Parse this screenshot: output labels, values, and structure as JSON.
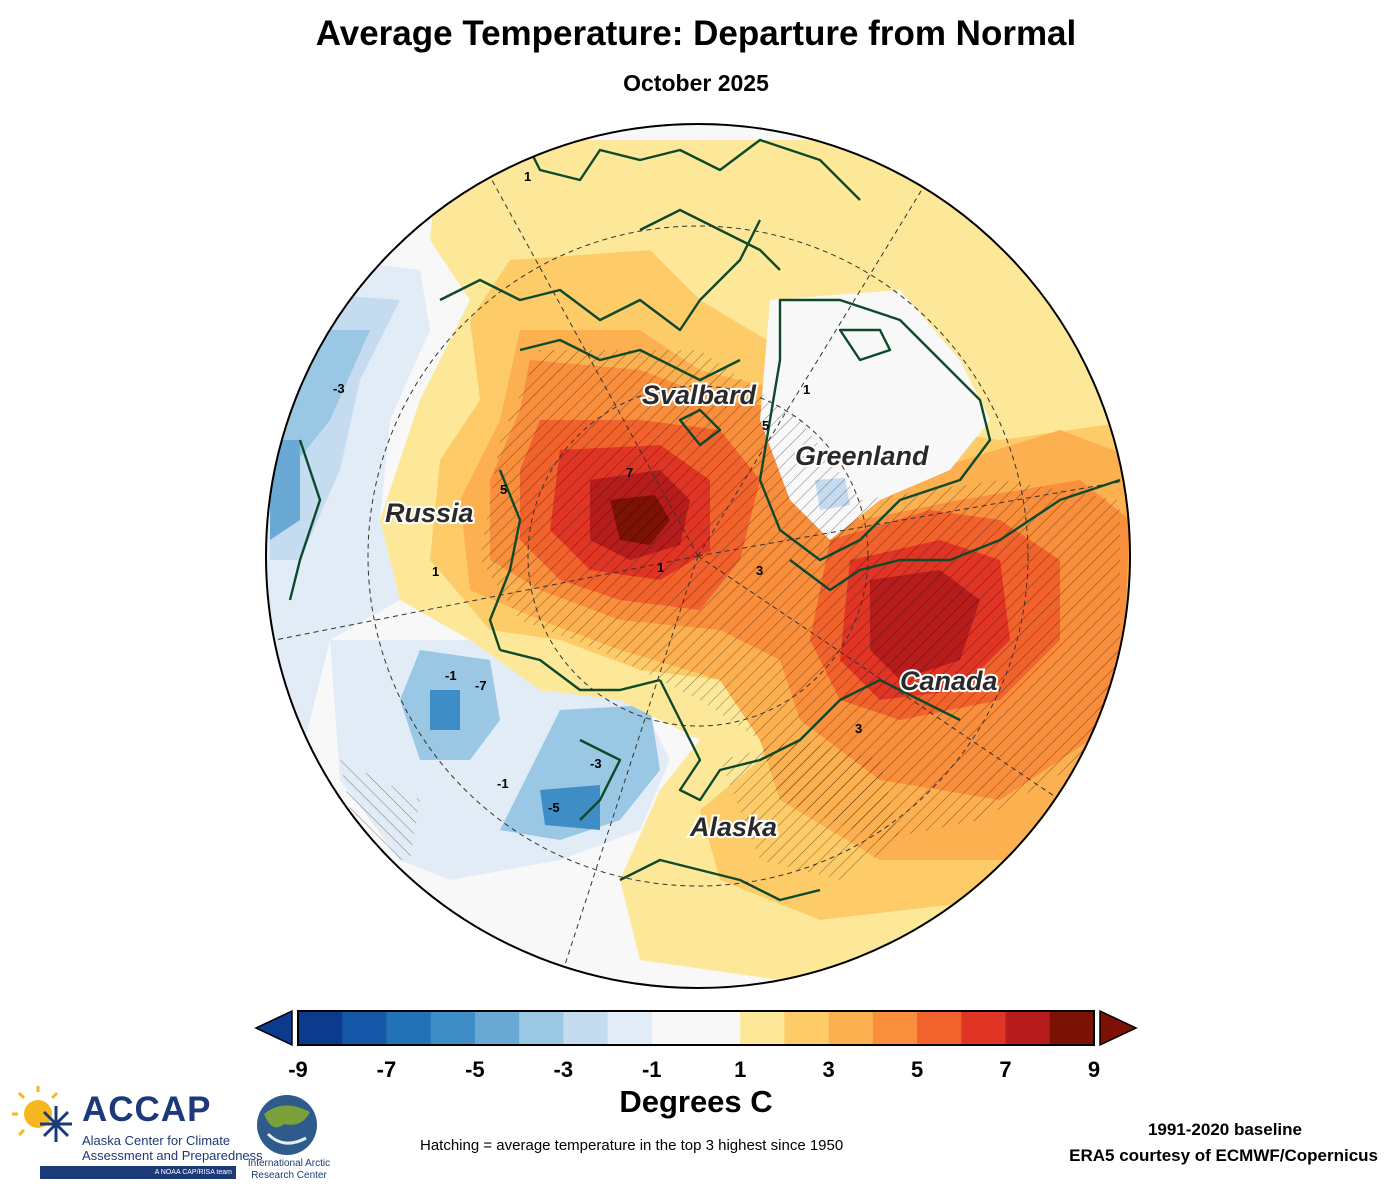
{
  "chart_data": {
    "type": "heatmap",
    "projection": "north polar stereographic",
    "title": "Average Temperature: Departure from Normal",
    "subtitle": "October 2025",
    "colorbar": {
      "label": "Degrees C",
      "ticks": [
        "-9",
        "-7",
        "-5",
        "-3",
        "-1",
        "1",
        "3",
        "5",
        "7",
        "9"
      ],
      "range": [
        -9,
        9
      ],
      "step": 1,
      "extend": "both",
      "colors": [
        "#0c3a8c",
        "#1558a8",
        "#2272b8",
        "#3f8dc6",
        "#69a9d4",
        "#9ac7e3",
        "#c4dbf0",
        "#e2ecf7",
        "#f8f8f8",
        "#f8f8f8",
        "#fde89a",
        "#fdcc68",
        "#fcb050",
        "#f98e3c",
        "#f2622c",
        "#e03424",
        "#b71c1c",
        "#7c1106"
      ],
      "under_color": "#0c3a8c",
      "over_color": "#7c1106"
    },
    "regions": [
      "Svalbard",
      "Greenland",
      "Russia",
      "Canada",
      "Alaska"
    ],
    "contour_labels": [
      "1",
      "3",
      "5",
      "7",
      "-1",
      "-3",
      "-5",
      "-7"
    ]
  },
  "annotations": {
    "hatching_note": "Hatching = average temperature in the top 3 highest since 1950",
    "baseline": "1991-2020 baseline",
    "source": "ERA5 courtesy of ECMWF/Copernicus"
  },
  "logos": {
    "accap_short": "ACCAP",
    "accap_line1": "Alaska Center for Climate",
    "accap_line2": "Assessment and Preparedness",
    "accap_tag": "A NOAA CAP/RISA team",
    "iarc_line1": "International Arctic",
    "iarc_line2": "Research Center"
  }
}
